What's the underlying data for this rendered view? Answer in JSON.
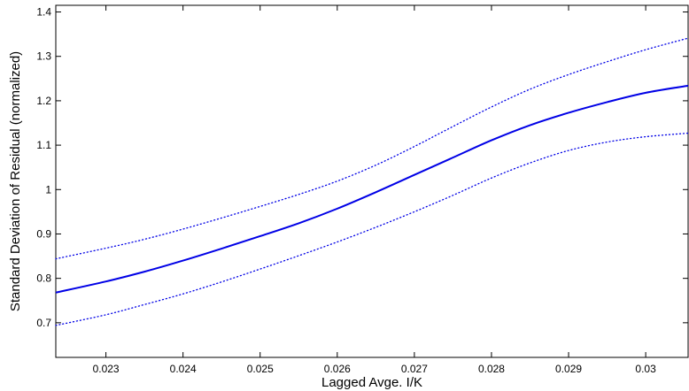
{
  "chart_data": {
    "type": "line",
    "xlabel": "Lagged Avge. I/K",
    "ylabel": "Standard Deviation of Residual (normalized)",
    "xlim": [
      0.02235,
      0.03055
    ],
    "ylim": [
      0.622,
      1.415
    ],
    "x_ticks": [
      0.023,
      0.024,
      0.025,
      0.026,
      0.027,
      0.028,
      0.029,
      0.03
    ],
    "x_tick_labels": [
      "0.023",
      "0.024",
      "0.025",
      "0.026",
      "0.027",
      "0.028",
      "0.029",
      "0.03"
    ],
    "y_ticks": [
      0.7,
      0.8,
      0.9,
      1.0,
      1.1,
      1.2,
      1.3,
      1.4
    ],
    "y_tick_labels": [
      "0.7",
      "0.8",
      "0.9",
      "1",
      "1.1",
      "1.2",
      "1.3",
      "1.4"
    ],
    "grid": false,
    "series": [
      {
        "role": "estimate",
        "color": "#0000e6",
        "style": "solid",
        "x": [
          0.02235,
          0.023,
          0.0235,
          0.024,
          0.0245,
          0.025,
          0.0255,
          0.026,
          0.0265,
          0.027,
          0.0275,
          0.028,
          0.0285,
          0.029,
          0.0295,
          0.03,
          0.03055
        ],
        "y": [
          0.768,
          0.793,
          0.815,
          0.84,
          0.867,
          0.895,
          0.924,
          0.957,
          0.994,
          1.033,
          1.072,
          1.111,
          1.145,
          1.173,
          1.197,
          1.218,
          1.234
        ]
      },
      {
        "role": "upper-band",
        "color": "#0000e6",
        "style": "dotted",
        "x": [
          0.02235,
          0.023,
          0.0235,
          0.024,
          0.0245,
          0.025,
          0.0255,
          0.026,
          0.0265,
          0.027,
          0.0275,
          0.028,
          0.0285,
          0.029,
          0.0295,
          0.03,
          0.03055
        ],
        "y": [
          0.844,
          0.868,
          0.888,
          0.911,
          0.936,
          0.962,
          0.989,
          1.019,
          1.055,
          1.097,
          1.142,
          1.186,
          1.226,
          1.259,
          1.288,
          1.315,
          1.341
        ]
      },
      {
        "role": "lower-band",
        "color": "#0000e6",
        "style": "dotted",
        "x": [
          0.02235,
          0.023,
          0.0235,
          0.024,
          0.0245,
          0.025,
          0.0255,
          0.026,
          0.0265,
          0.027,
          0.0275,
          0.028,
          0.0285,
          0.029,
          0.0295,
          0.03,
          0.03055
        ],
        "y": [
          0.694,
          0.718,
          0.741,
          0.765,
          0.792,
          0.821,
          0.851,
          0.882,
          0.915,
          0.95,
          0.987,
          1.026,
          1.06,
          1.088,
          1.107,
          1.119,
          1.127
        ]
      }
    ]
  }
}
